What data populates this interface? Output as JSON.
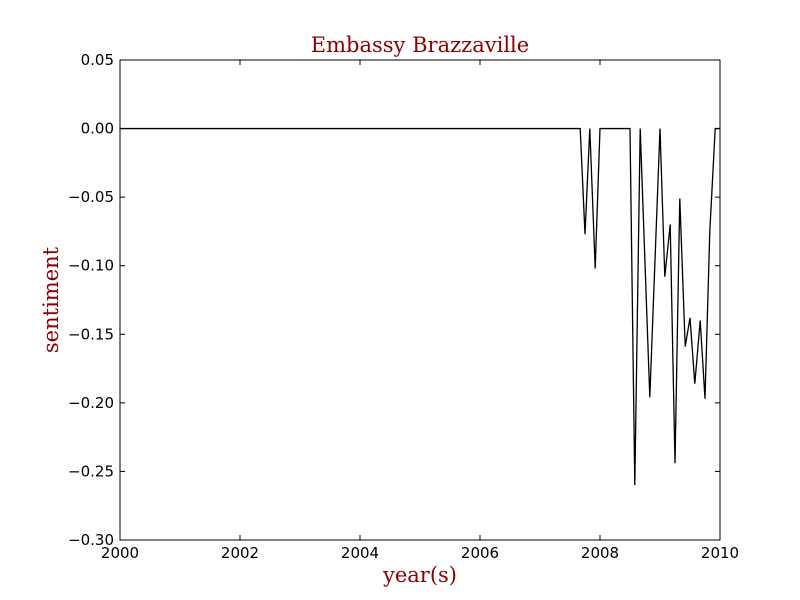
{
  "chart_data": {
    "type": "line",
    "title": "Embassy Brazzaville",
    "xlabel": "year(s)",
    "ylabel": "sentiment",
    "xlim": [
      2000,
      2010
    ],
    "ylim": [
      -0.3,
      0.05
    ],
    "xticks": [
      2000,
      2002,
      2004,
      2006,
      2008,
      2010
    ],
    "xtick_labels": [
      "2000",
      "2002",
      "2004",
      "2006",
      "2008",
      "2010"
    ],
    "yticks": [
      0.05,
      0.0,
      -0.05,
      -0.1,
      -0.15,
      -0.2,
      -0.25,
      -0.3
    ],
    "ytick_labels": [
      "0.05",
      "0.00",
      "−0.05",
      "−0.10",
      "−0.15",
      "−0.20",
      "−0.25",
      "−0.30"
    ],
    "grid": false,
    "colors": {
      "line": "#000000",
      "title": "#8b0000",
      "axis_label": "#8b0000"
    },
    "series": [
      {
        "points": [
          [
            2000.0,
            0.0
          ],
          [
            2007.67,
            0.0
          ],
          [
            2007.75,
            -0.077
          ],
          [
            2007.83,
            0.0
          ],
          [
            2007.92,
            -0.102
          ],
          [
            2008.0,
            0.0
          ],
          [
            2008.5,
            0.0
          ],
          [
            2008.58,
            -0.26
          ],
          [
            2008.67,
            0.0
          ],
          [
            2008.83,
            -0.196
          ],
          [
            2009.0,
            0.0
          ],
          [
            2009.08,
            -0.108
          ],
          [
            2009.17,
            -0.07
          ],
          [
            2009.25,
            -0.244
          ],
          [
            2009.33,
            -0.051
          ],
          [
            2009.42,
            -0.159
          ],
          [
            2009.5,
            -0.138
          ],
          [
            2009.58,
            -0.186
          ],
          [
            2009.67,
            -0.14
          ],
          [
            2009.75,
            -0.197
          ],
          [
            2009.83,
            -0.075
          ],
          [
            2009.92,
            0.0
          ],
          [
            2010.0,
            0.0
          ]
        ]
      }
    ]
  }
}
